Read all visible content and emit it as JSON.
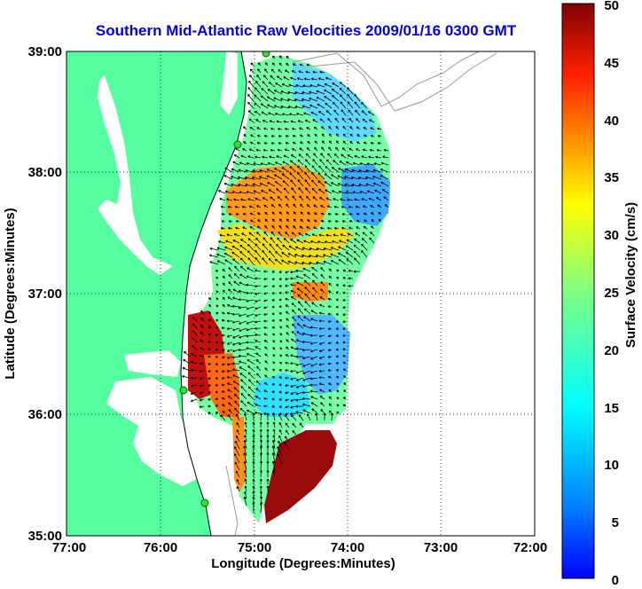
{
  "title": "Southern Mid-Atlantic Raw Velocities 2009/01/16 0300 GMT",
  "title_color": "#0000ee",
  "axes": {
    "xlabel": "Longitude (Degrees:Minutes)",
    "ylabel": "Latitude (Degrees:Minutes)",
    "x_ticks": [
      "77:00",
      "76:00",
      "75:00",
      "74:00",
      "73:00",
      "72:00"
    ],
    "y_ticks": [
      "39:00",
      "38:00",
      "37:00",
      "36:00",
      "35:00"
    ],
    "x_range": [
      -77,
      -72
    ],
    "y_range": [
      35,
      39
    ],
    "grid": "dotted"
  },
  "colorbar": {
    "label": "Surface Velocity (cm/s)",
    "ticks": [
      "50",
      "45",
      "40",
      "35",
      "30",
      "25",
      "20",
      "15",
      "10",
      "5",
      "0"
    ],
    "min": 0,
    "max": 50,
    "colormap": "jet"
  },
  "land_color": "#55ffa0",
  "station_color": "#33dd33"
}
